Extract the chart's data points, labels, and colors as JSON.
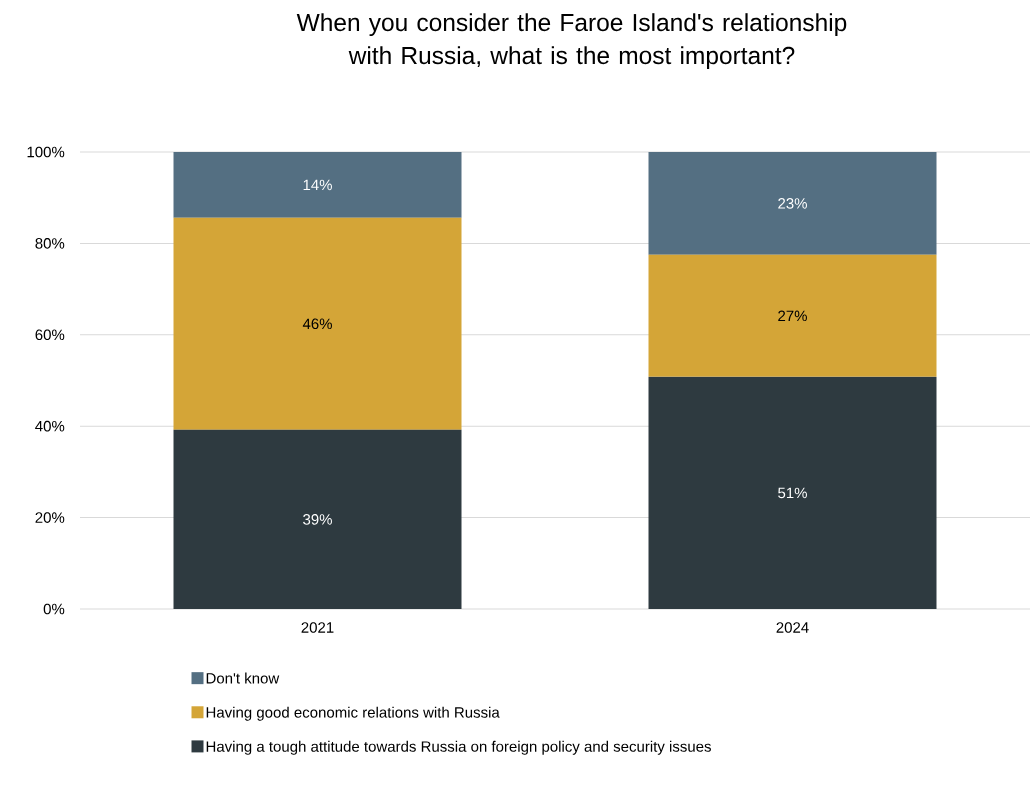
{
  "chart_data": {
    "type": "bar",
    "stacked": true,
    "title": "When you consider the Faroe Island's relationship with Russia, what is the most important?",
    "categories": [
      "2021",
      "2024"
    ],
    "series": [
      {
        "name": "Having a tough attitude towards Russia on foreign policy and security issues",
        "color": "#2e3a40",
        "values": [
          39.2,
          50.8
        ],
        "value_labels": [
          "39%",
          "51%"
        ]
      },
      {
        "name": "Having good economic relations with Russia",
        "color": "#d4a537",
        "values": [
          46.4,
          26.7
        ],
        "value_labels": [
          "46%",
          "27%"
        ]
      },
      {
        "name": "Don't know",
        "color": "#546f82",
        "values": [
          14.4,
          22.5
        ],
        "value_labels": [
          "14%",
          "23%"
        ]
      }
    ],
    "ylim": [
      0,
      100
    ],
    "yticks": [
      {
        "value": 0,
        "label": "0%"
      },
      {
        "value": 20,
        "label": "20%"
      },
      {
        "value": 40,
        "label": "40%"
      },
      {
        "value": 60,
        "label": "60%"
      },
      {
        "value": 80,
        "label": "80%"
      },
      {
        "value": 100,
        "label": "100%"
      }
    ],
    "grid": "y",
    "legend": "bottom"
  }
}
